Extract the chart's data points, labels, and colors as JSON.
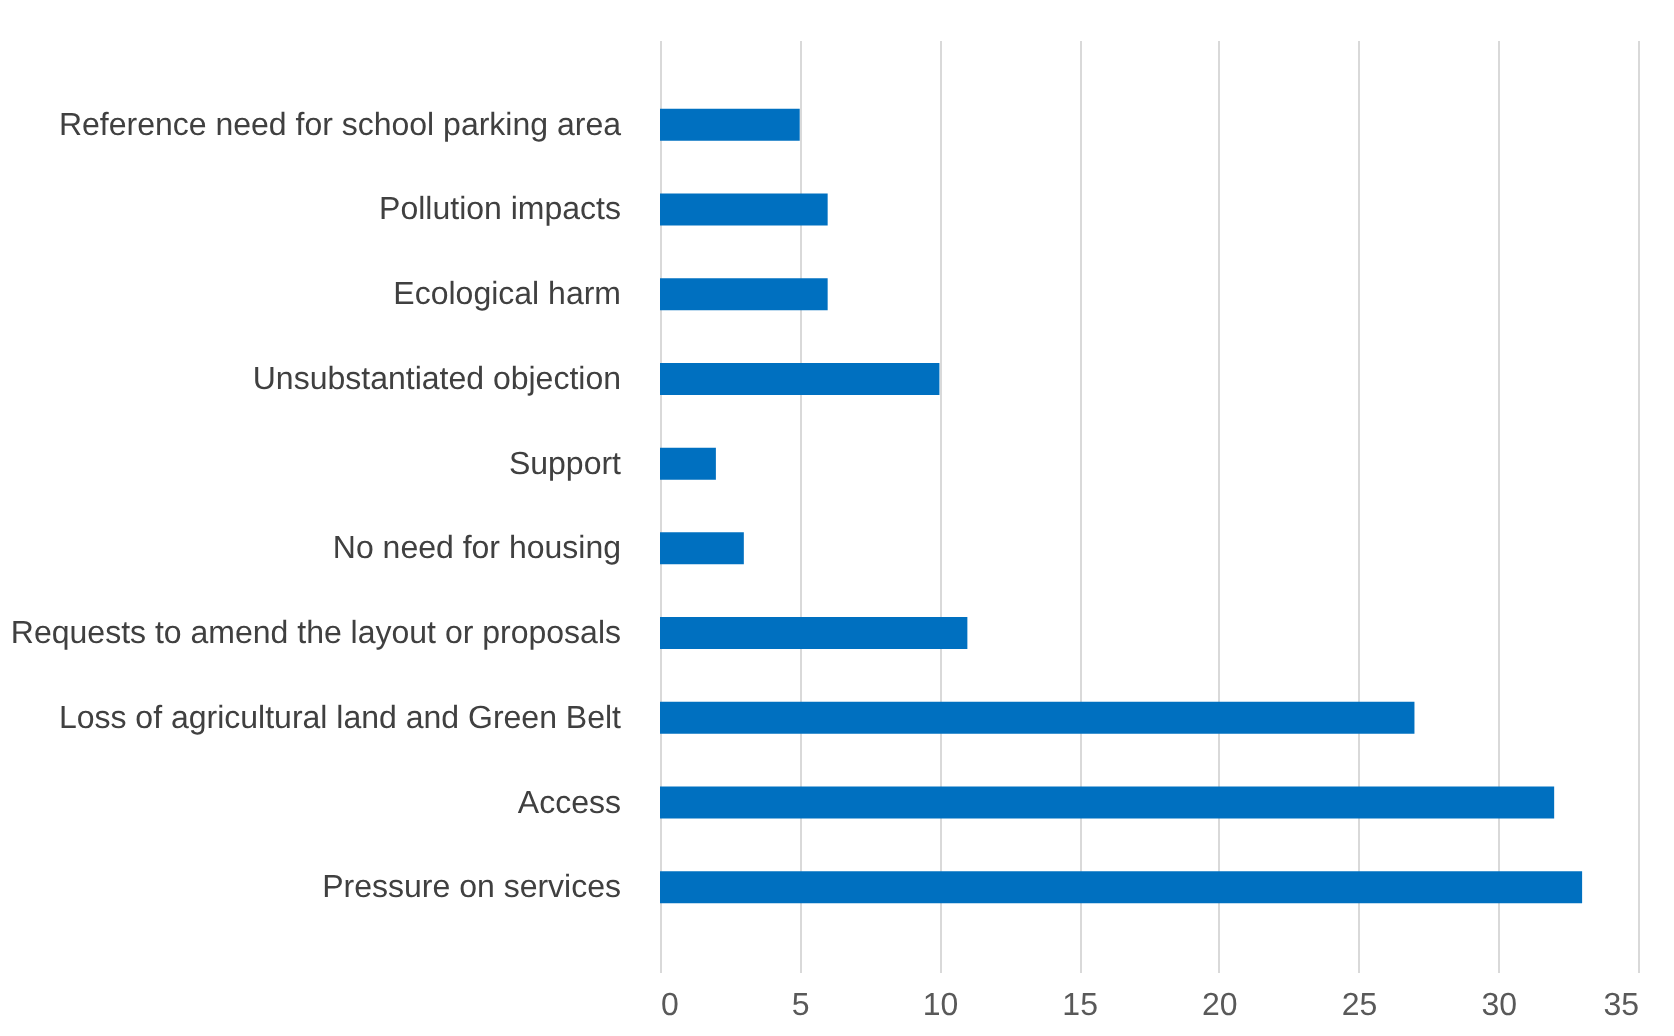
{
  "chart_data": {
    "type": "bar",
    "orientation": "horizontal",
    "categories": [
      "Reference need for school parking area",
      "Pollution impacts",
      "Ecological harm",
      "Unsubstantiated objection",
      "Support",
      "No need for housing",
      "Requests to amend the layout or proposals",
      "Loss of agricultural land and Green Belt",
      "Access",
      "Pressure on services"
    ],
    "values": [
      5,
      6,
      6,
      10,
      2,
      3,
      11,
      27,
      32,
      33
    ],
    "color": "#0070c0",
    "xlim": [
      0,
      35
    ],
    "xticks": [
      0,
      5,
      10,
      15,
      20,
      25,
      30,
      35
    ],
    "grid": "x"
  }
}
